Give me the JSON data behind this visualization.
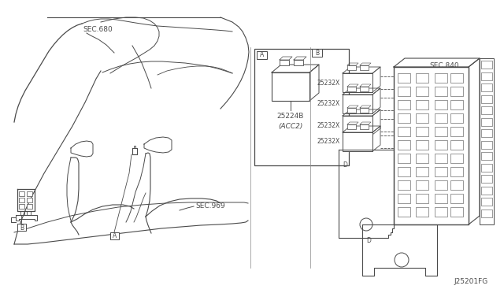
{
  "bg_color": "#ffffff",
  "line_color": "#4a4a4a",
  "title_code": "J25201FG",
  "labels": {
    "sec_680": "SEC.680",
    "sec_969": "SEC.969",
    "sec_840": "SEC.840",
    "part_a_label": "25224B",
    "part_a_sub": "(ACC2)",
    "relay_label": "25232X"
  },
  "relay_labels": [
    "25232X",
    "25232X",
    "25232X",
    "25232X"
  ],
  "font_size_tiny": 5.5,
  "font_size_small": 6.5,
  "font_size_med": 7.5
}
